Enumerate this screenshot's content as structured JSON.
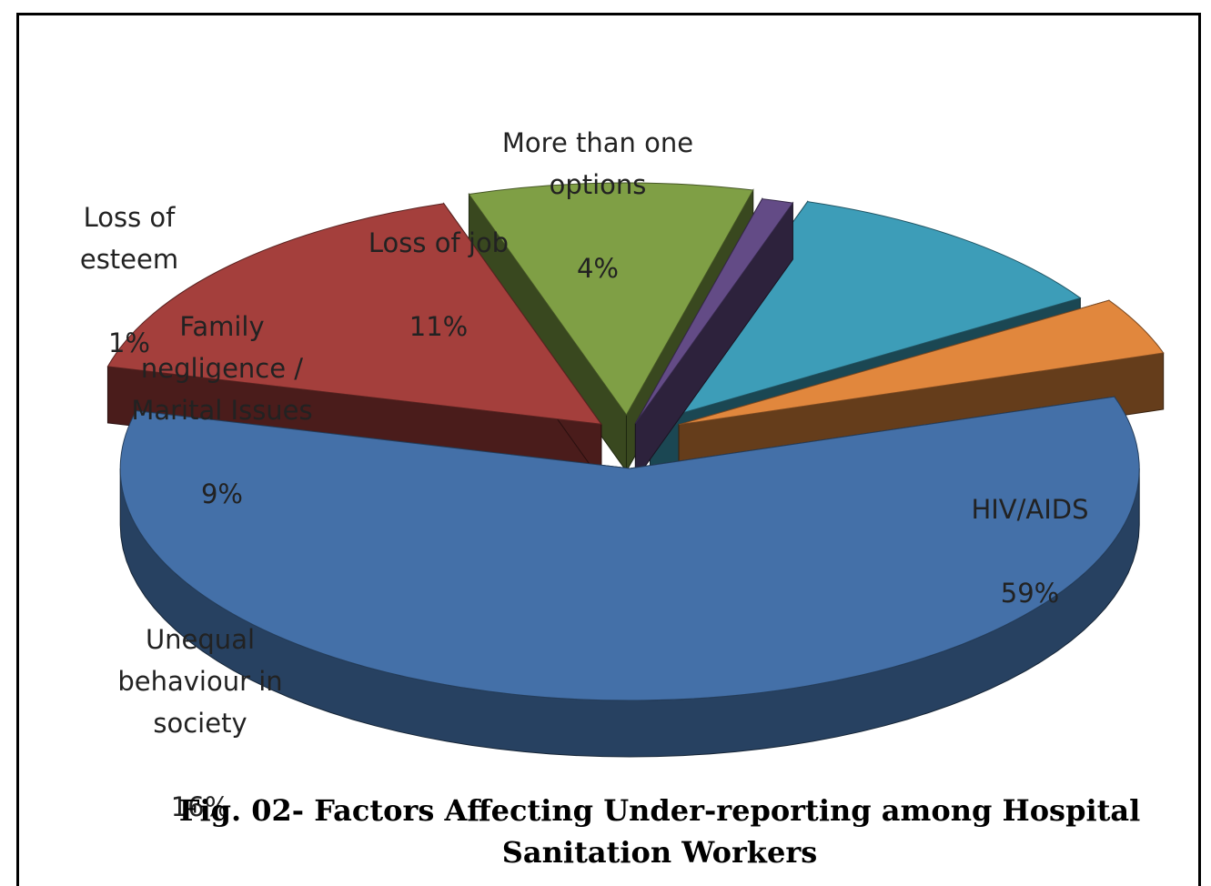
{
  "chart_data": {
    "type": "pie",
    "style": "3d-exploded",
    "title": "Fig. 02- Factors Affecting Under-reporting among Hospital Sanitation Workers",
    "slices": [
      {
        "label": "HIV/AIDS",
        "value": 59,
        "value_label": "59%",
        "color": "#4470a8"
      },
      {
        "label": "Unequal behaviour in society",
        "value": 16,
        "value_label": "16%",
        "color": "#a43f3c"
      },
      {
        "label": "Family negligence / Marital Issues",
        "value": 9,
        "value_label": "9%",
        "color": "#7f9f45"
      },
      {
        "label": "Loss of esteem",
        "value": 1,
        "value_label": "1%",
        "color": "#634b86"
      },
      {
        "label": "Loss of job",
        "value": 11,
        "value_label": "11%",
        "color": "#3d9db8"
      },
      {
        "label": "More than one options",
        "value": 4,
        "value_label": "4%",
        "color": "#e1873d"
      }
    ],
    "legend": "none"
  }
}
